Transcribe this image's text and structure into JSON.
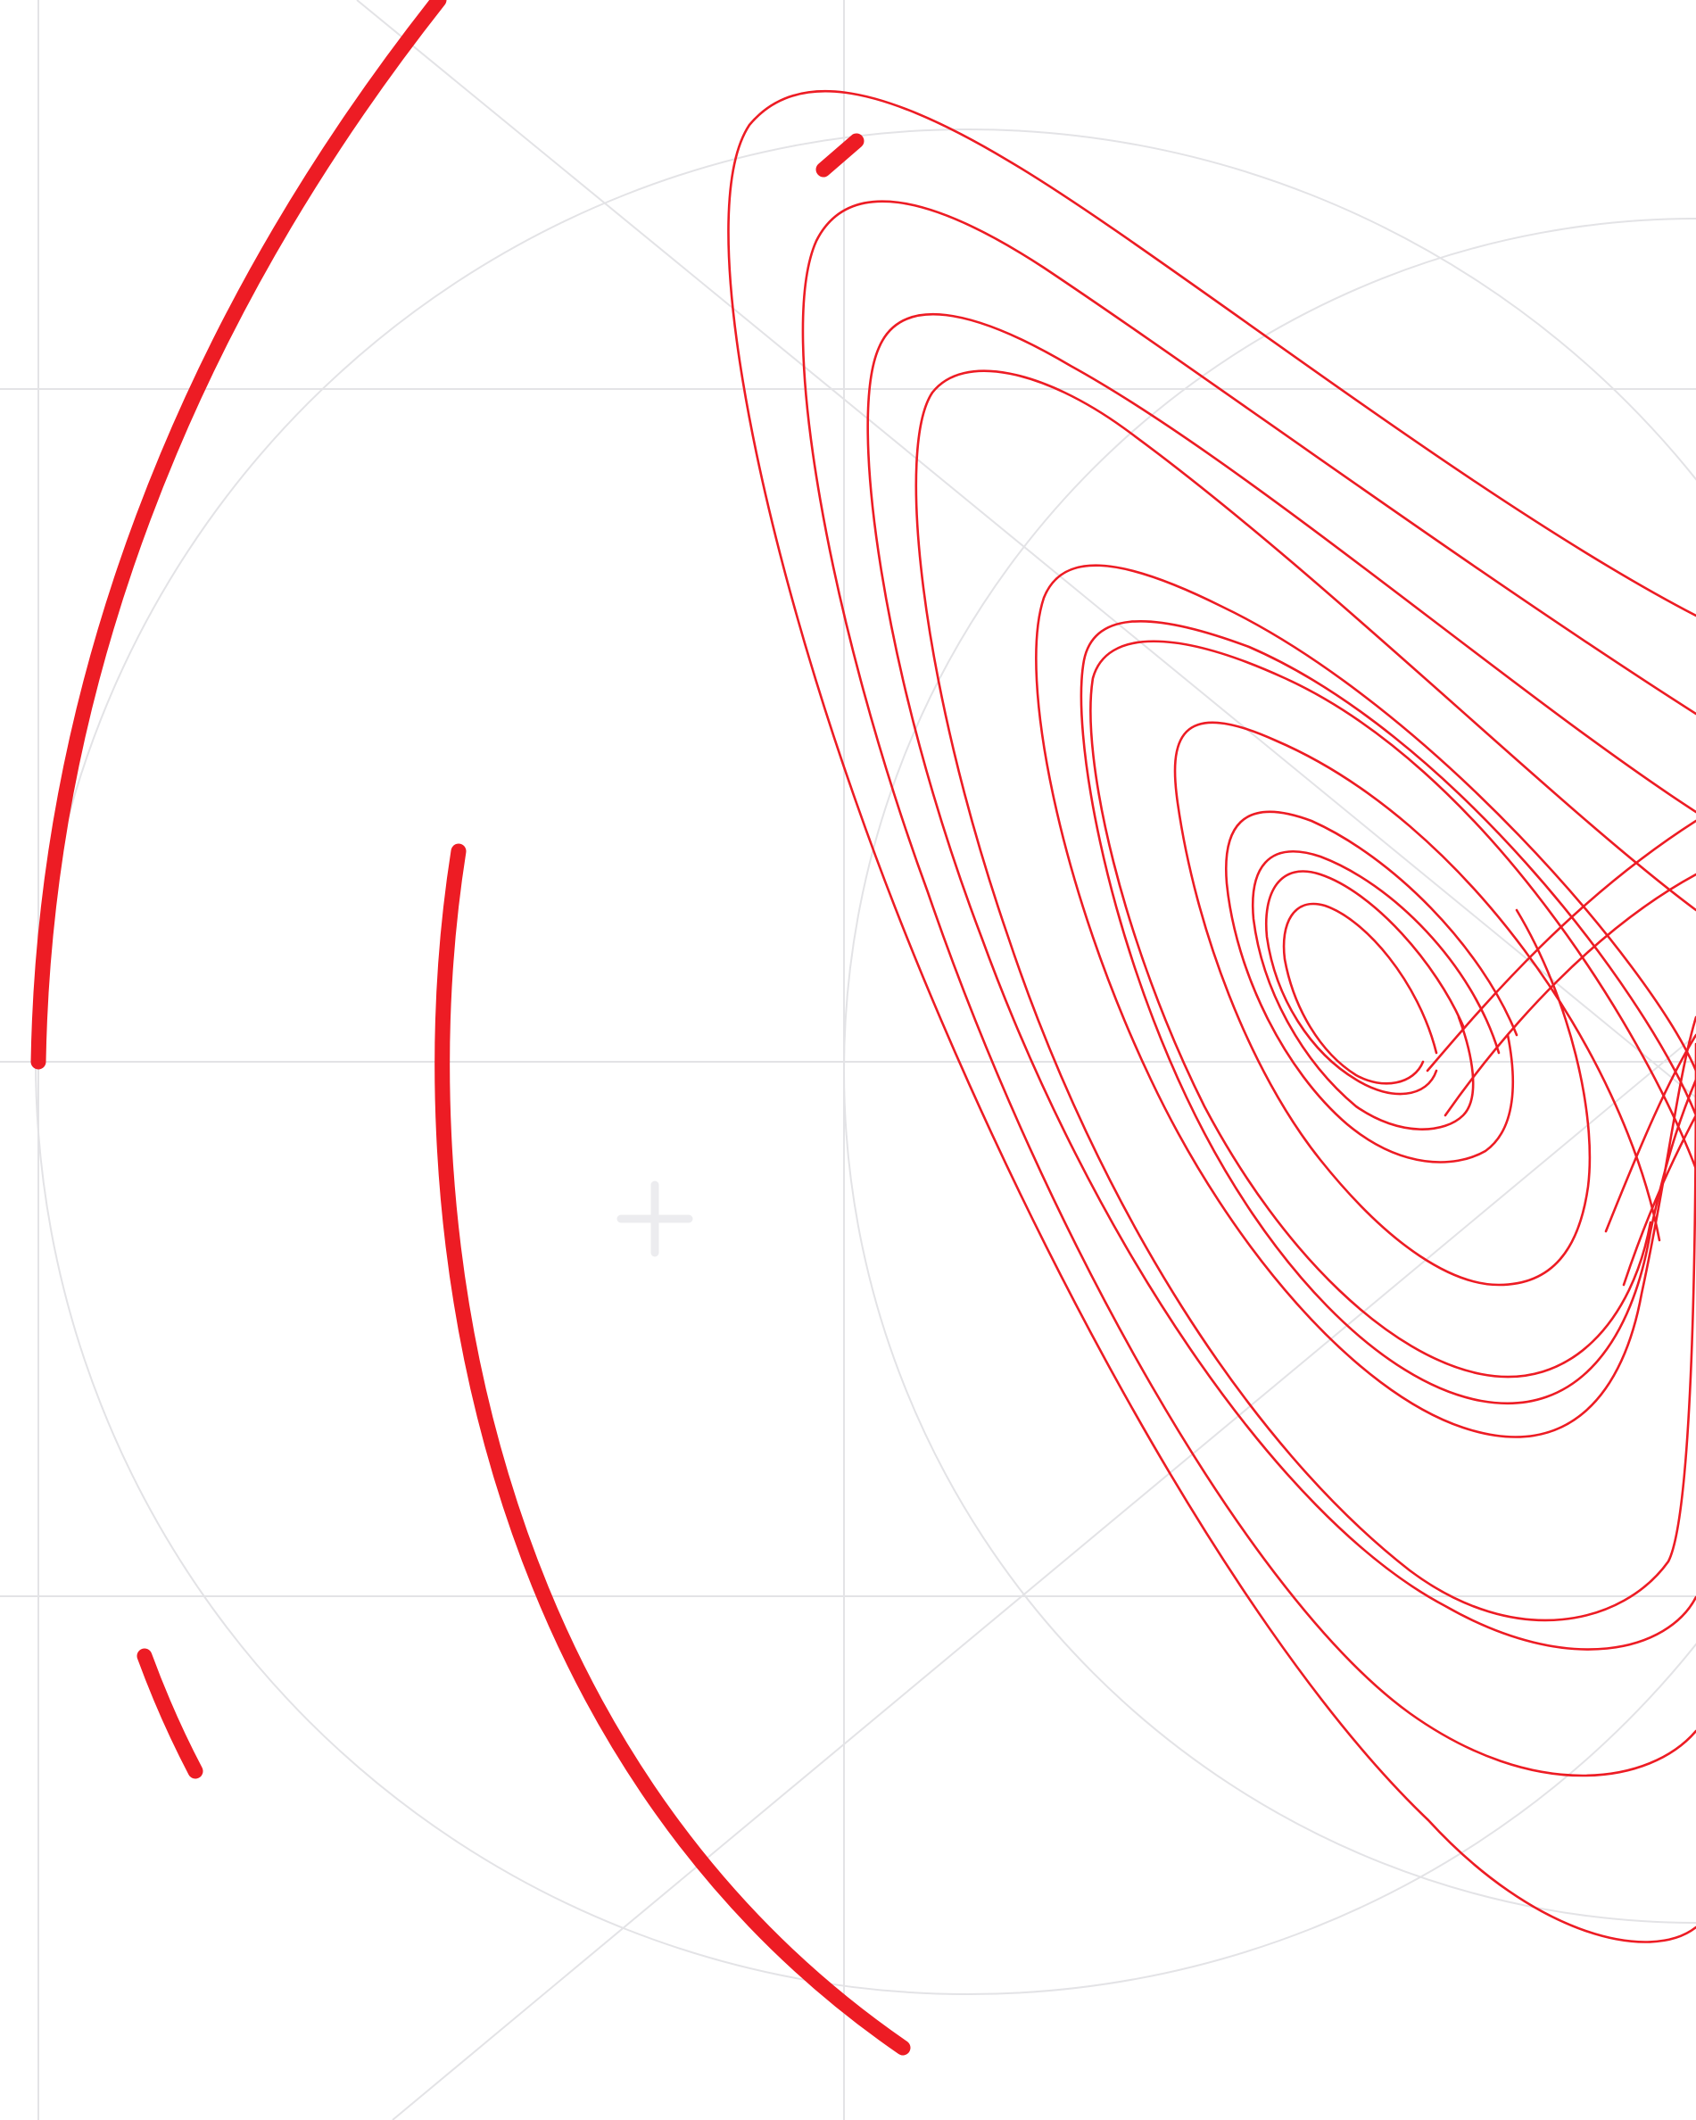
{
  "colors": {
    "background": "#ffffff",
    "grid": "#e3e3e6",
    "accent": "#ed1c24"
  },
  "icons": {
    "plus_marker": "plus-icon"
  }
}
